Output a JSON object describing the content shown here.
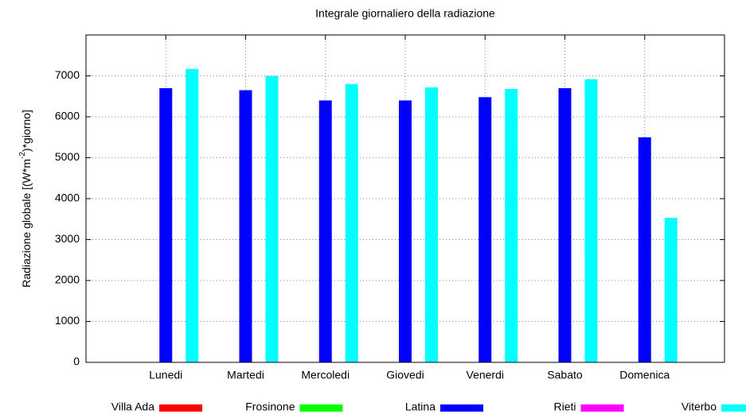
{
  "chart_data": {
    "type": "bar",
    "title": "Integrale giornaliero della radiazione",
    "ylabel": [
      "Radiazione globale [(W*m",
      "-2",
      ")*giorno]"
    ],
    "categories": [
      "Lunedi",
      "Martedi",
      "Mercoledi",
      "Giovedi",
      "Venerdi",
      "Sabato",
      "Domenica"
    ],
    "series": [
      {
        "name": "Villa Ada",
        "color": "#ff0000",
        "values": [
          null,
          null,
          null,
          null,
          null,
          null,
          null
        ]
      },
      {
        "name": "Frosinone",
        "color": "#00ff00",
        "values": [
          null,
          null,
          null,
          null,
          null,
          null,
          null
        ]
      },
      {
        "name": "Latina",
        "color": "#0000ff",
        "values": [
          6700,
          6650,
          6400,
          6400,
          6480,
          6700,
          5500
        ]
      },
      {
        "name": "Rieti",
        "color": "#ff00ff",
        "values": [
          null,
          null,
          null,
          null,
          null,
          null,
          null
        ]
      },
      {
        "name": "Viterbo",
        "color": "#00ffff",
        "values": [
          7170,
          7000,
          6800,
          6720,
          6680,
          6920,
          3530
        ]
      }
    ],
    "ylim": [
      0,
      8000
    ],
    "yticks": [
      0,
      1000,
      2000,
      3000,
      4000,
      5000,
      6000,
      7000
    ],
    "grid": true,
    "legend": "bottom"
  }
}
